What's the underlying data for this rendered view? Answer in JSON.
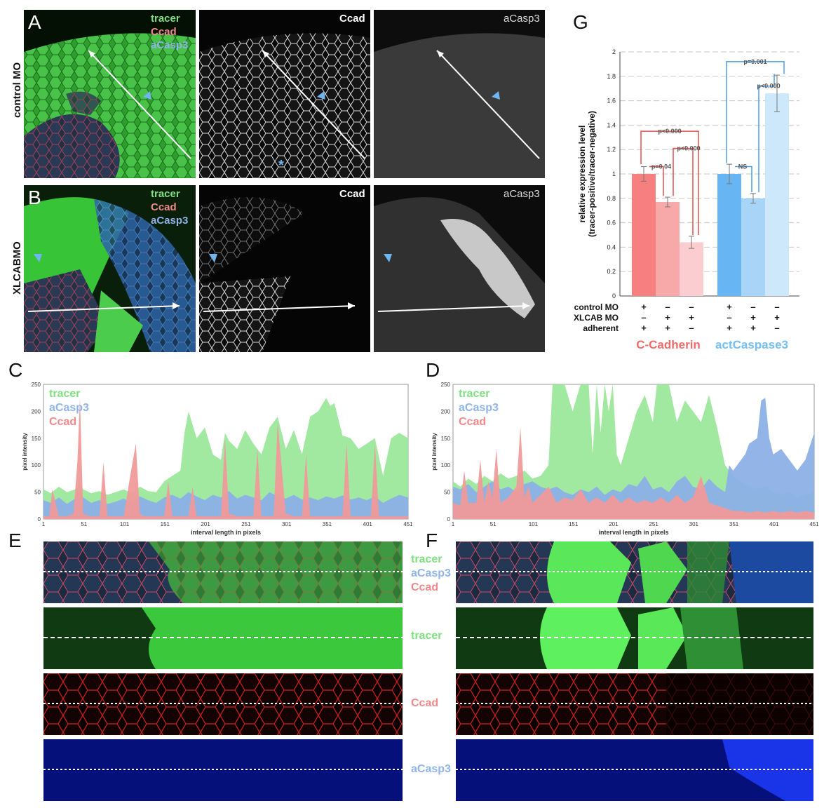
{
  "panels": {
    "A": "A",
    "B": "B",
    "C": "C",
    "D": "D",
    "E": "E",
    "F": "F",
    "G": "G"
  },
  "rows": {
    "control": "control MO",
    "xlcab": "XLCABMO"
  },
  "channels": {
    "tracer": "tracer",
    "ccad": "Ccad",
    "acasp3": "aCasp3"
  },
  "colors": {
    "tracer": "#7fe07f",
    "ccad": "#f08a8a",
    "acasp3": "#8fb4ea",
    "arrow_blue": "#6fb6f0"
  },
  "chart_data": [
    {
      "panel": "C",
      "type": "area",
      "xlabel": "interval length in pixels",
      "ylabel": "pixel intensity",
      "xlim": [
        1,
        451
      ],
      "ylim": [
        0,
        250
      ],
      "xticks": [
        1,
        51,
        101,
        151,
        201,
        251,
        301,
        351,
        401,
        451
      ],
      "yticks": [
        0,
        50,
        100,
        150,
        200,
        250
      ],
      "legend": [
        "tracer",
        "aCasp3",
        "Ccad"
      ],
      "series": [
        {
          "name": "tracer",
          "color": "#9ce89c",
          "x": [
            1,
            10,
            20,
            30,
            40,
            45,
            50,
            60,
            70,
            80,
            90,
            100,
            110,
            120,
            130,
            140,
            150,
            160,
            170,
            175,
            180,
            190,
            200,
            210,
            220,
            225,
            230,
            240,
            250,
            260,
            270,
            280,
            290,
            300,
            310,
            320,
            330,
            340,
            350,
            355,
            360,
            370,
            380,
            390,
            400,
            410,
            420,
            430,
            440,
            451
          ],
          "values": [
            55,
            48,
            60,
            50,
            55,
            65,
            55,
            48,
            52,
            45,
            50,
            55,
            48,
            60,
            52,
            50,
            70,
            80,
            90,
            160,
            200,
            150,
            170,
            120,
            110,
            160,
            145,
            130,
            165,
            140,
            120,
            170,
            190,
            130,
            165,
            120,
            190,
            200,
            225,
            210,
            215,
            155,
            150,
            130,
            140,
            150,
            80,
            150,
            160,
            150
          ]
        },
        {
          "name": "aCasp3",
          "color": "#8cb0e6",
          "x": [
            1,
            10,
            20,
            30,
            40,
            45,
            50,
            60,
            70,
            80,
            90,
            100,
            110,
            120,
            130,
            140,
            150,
            160,
            170,
            180,
            190,
            200,
            210,
            220,
            230,
            240,
            250,
            260,
            270,
            280,
            290,
            300,
            310,
            320,
            330,
            340,
            350,
            360,
            370,
            380,
            390,
            400,
            410,
            420,
            430,
            440,
            451
          ],
          "values": [
            35,
            30,
            40,
            28,
            38,
            55,
            40,
            30,
            35,
            28,
            32,
            38,
            30,
            42,
            35,
            30,
            40,
            45,
            38,
            50,
            42,
            35,
            45,
            40,
            52,
            38,
            45,
            40,
            35,
            50,
            42,
            38,
            45,
            36,
            40,
            35,
            42,
            38,
            44,
            36,
            40,
            35,
            42,
            30,
            38,
            45,
            40
          ]
        },
        {
          "name": "Ccad",
          "color": "#f09a9a",
          "x": [
            1,
            8,
            12,
            20,
            30,
            38,
            43,
            46,
            50,
            58,
            70,
            75,
            80,
            90,
            100,
            108,
            115,
            120,
            125,
            135,
            150,
            155,
            160,
            170,
            180,
            185,
            190,
            200,
            210,
            220,
            225,
            230,
            240,
            250,
            260,
            265,
            270,
            280,
            285,
            290,
            300,
            310,
            320,
            325,
            330,
            340,
            350,
            360,
            370,
            375,
            380,
            390,
            400,
            405,
            410,
            415,
            420,
            430,
            440,
            451
          ],
          "values": [
            5,
            5,
            55,
            5,
            5,
            10,
            110,
            225,
            10,
            5,
            5,
            105,
            5,
            5,
            5,
            80,
            140,
            10,
            5,
            5,
            5,
            70,
            5,
            5,
            5,
            60,
            5,
            5,
            5,
            5,
            150,
            10,
            5,
            5,
            5,
            130,
            5,
            5,
            5,
            180,
            10,
            5,
            5,
            120,
            5,
            5,
            5,
            5,
            5,
            140,
            5,
            5,
            5,
            5,
            140,
            5,
            5,
            5,
            5,
            5
          ]
        }
      ]
    },
    {
      "panel": "D",
      "type": "area",
      "xlabel": "interval length in pixels",
      "ylabel": "pixel intensity",
      "xlim": [
        1,
        451
      ],
      "ylim": [
        0,
        250
      ],
      "xticks": [
        1,
        51,
        101,
        151,
        201,
        251,
        301,
        351,
        401,
        451
      ],
      "yticks": [
        0,
        50,
        100,
        150,
        200,
        250
      ],
      "legend": [
        "tracer",
        "aCasp3",
        "Ccad"
      ],
      "series": [
        {
          "name": "tracer",
          "color": "#9ce89c",
          "x": [
            1,
            10,
            20,
            30,
            40,
            50,
            60,
            70,
            80,
            90,
            100,
            110,
            120,
            125,
            130,
            140,
            150,
            160,
            170,
            175,
            180,
            185,
            190,
            195,
            200,
            205,
            210,
            220,
            230,
            240,
            250,
            255,
            260,
            270,
            280,
            290,
            300,
            310,
            320,
            330,
            340,
            350,
            360,
            370,
            380,
            390,
            400,
            410,
            420,
            430,
            440,
            451
          ],
          "values": [
            70,
            60,
            75,
            65,
            80,
            70,
            85,
            75,
            80,
            90,
            75,
            80,
            100,
            250,
            250,
            250,
            200,
            250,
            250,
            120,
            250,
            160,
            250,
            200,
            250,
            120,
            100,
            150,
            200,
            230,
            180,
            250,
            250,
            250,
            180,
            220,
            200,
            180,
            230,
            170,
            100,
            80,
            70,
            60,
            55,
            60,
            50,
            45,
            50,
            40,
            45,
            50
          ]
        },
        {
          "name": "aCasp3",
          "color": "#8cb0e6",
          "x": [
            1,
            10,
            20,
            30,
            40,
            50,
            60,
            70,
            80,
            90,
            100,
            110,
            120,
            130,
            140,
            150,
            160,
            170,
            180,
            190,
            200,
            210,
            220,
            230,
            240,
            250,
            260,
            270,
            280,
            290,
            300,
            310,
            320,
            330,
            340,
            345,
            350,
            360,
            365,
            370,
            380,
            385,
            390,
            395,
            400,
            410,
            420,
            430,
            440,
            451
          ],
          "values": [
            60,
            55,
            65,
            50,
            60,
            70,
            55,
            60,
            50,
            65,
            70,
            60,
            55,
            60,
            50,
            45,
            55,
            50,
            60,
            45,
            55,
            50,
            65,
            60,
            80,
            55,
            60,
            50,
            70,
            80,
            60,
            55,
            75,
            60,
            50,
            100,
            90,
            110,
            120,
            140,
            150,
            220,
            225,
            150,
            120,
            130,
            110,
            90,
            110,
            160
          ]
        },
        {
          "name": "Ccad",
          "color": "#f09a9a",
          "x": [
            1,
            10,
            15,
            20,
            30,
            35,
            40,
            45,
            50,
            55,
            60,
            70,
            80,
            85,
            90,
            95,
            100,
            110,
            120,
            130,
            140,
            150,
            160,
            170,
            180,
            190,
            200,
            210,
            220,
            230,
            240,
            250,
            260,
            270,
            280,
            290,
            300,
            310,
            320,
            330,
            340,
            350,
            360,
            370,
            380,
            390,
            400,
            410,
            420,
            430,
            440,
            451
          ],
          "values": [
            30,
            25,
            90,
            30,
            30,
            110,
            30,
            70,
            40,
            130,
            30,
            40,
            60,
            170,
            40,
            60,
            30,
            45,
            60,
            30,
            40,
            35,
            55,
            30,
            40,
            30,
            45,
            30,
            40,
            30,
            35,
            30,
            40,
            30,
            45,
            30,
            40,
            80,
            30,
            25,
            20,
            15,
            15,
            12,
            15,
            12,
            15,
            12,
            15,
            12,
            15,
            12
          ]
        }
      ]
    },
    {
      "panel": "G",
      "type": "bar",
      "ylabel": "relative expression level (tracer-positive/tracer-negative)",
      "ylabel_line1": "relative expression level",
      "ylabel_line2": "(tracer-positive/tracer-negative)",
      "ylim": [
        0,
        2
      ],
      "yticks": [
        "0",
        "0.2",
        "0.4",
        "0.6",
        "0.8",
        "1",
        "1.2",
        "1.4",
        "1.6",
        "1.8",
        "2"
      ],
      "groups": [
        {
          "name": "C-Cadherin",
          "color": "#ef6b6b",
          "bars": [
            {
              "value": 1.0,
              "err": 0.06,
              "color": "#f77f7f"
            },
            {
              "value": 0.77,
              "err": 0.04,
              "color": "#f7a8a8"
            },
            {
              "value": 0.44,
              "err": 0.05,
              "color": "#fbcdd0"
            }
          ]
        },
        {
          "name": "actCaspase3",
          "color": "#74bff2",
          "bars": [
            {
              "value": 1.0,
              "err": 0.08,
              "color": "#67b6f3"
            },
            {
              "value": 0.8,
              "err": 0.04,
              "color": "#a8d4f8"
            },
            {
              "value": 1.66,
              "err": 0.15,
              "color": "#cde7fb"
            }
          ]
        }
      ],
      "conditions": {
        "rows": [
          "control MO",
          "XLCAB MO",
          "adherent"
        ],
        "values": [
          [
            "+",
            "–",
            "–",
            "+",
            "–",
            "–"
          ],
          [
            "–",
            "+",
            "+",
            "–",
            "+",
            "+"
          ],
          [
            "+",
            "+",
            "–",
            "+",
            "+",
            "–"
          ]
        ]
      },
      "annotations": [
        "p<0.000",
        "p=0.04",
        "p<0.000",
        "p=0.001",
        "NS",
        "p<0.000"
      ]
    }
  ]
}
